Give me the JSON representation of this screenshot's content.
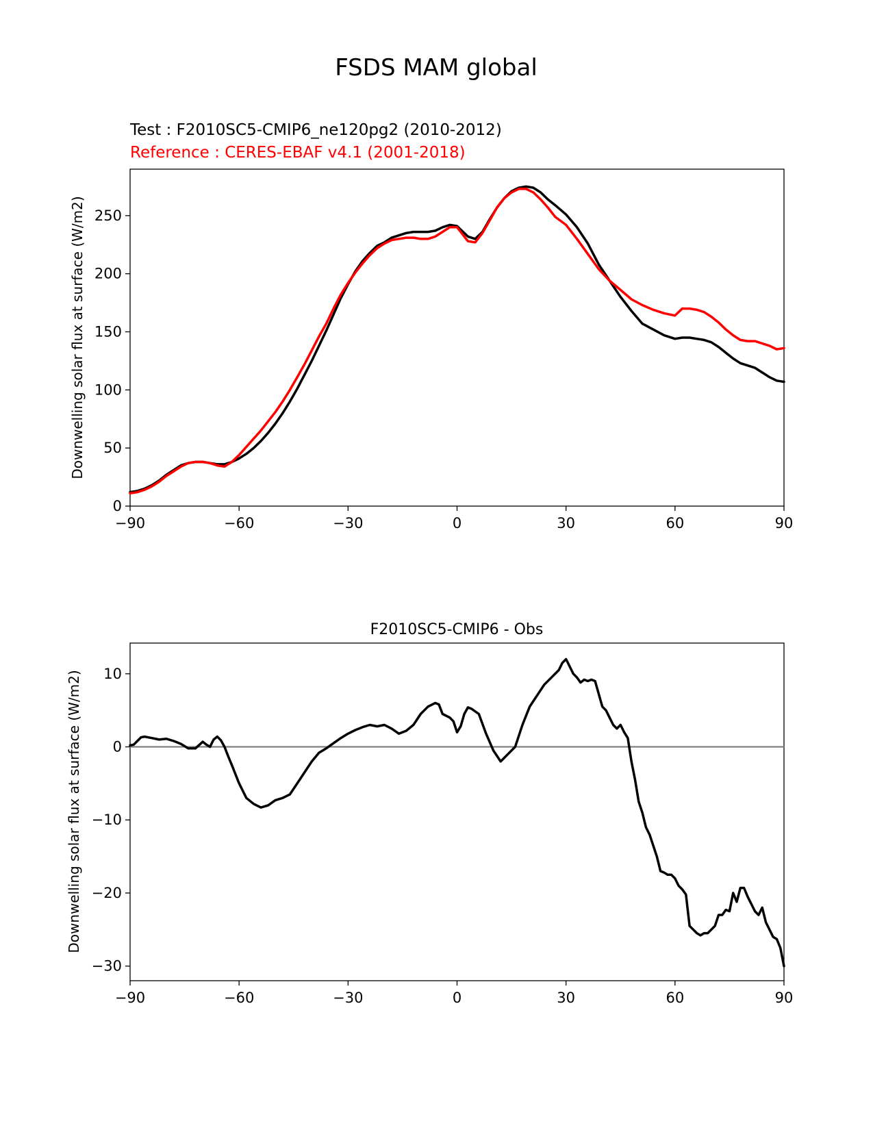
{
  "figure": {
    "suptitle": "FSDS MAM global"
  },
  "chart_data": [
    {
      "type": "line",
      "title_test": "Test : F2010SC5-CMIP6_ne120pg2 (2010-2012)",
      "title_ref": "Reference : CERES-EBAF v4.1 (2001-2018)",
      "xlabel": "",
      "ylabel": "Downwelling solar flux at surface (W/m2)",
      "xlim": [
        -90,
        90
      ],
      "ylim": [
        0,
        290
      ],
      "xticks": [
        -90,
        -60,
        -30,
        0,
        30,
        60,
        90
      ],
      "xtick_labels": [
        "−90",
        "−60",
        "−30",
        "0",
        "30",
        "60",
        "90"
      ],
      "yticks": [
        0,
        50,
        100,
        150,
        200,
        250
      ],
      "ytick_labels": [
        "0",
        "50",
        "100",
        "150",
        "200",
        "250"
      ],
      "grid": false,
      "legend": "none",
      "series": [
        {
          "color": "#000000",
          "x": [
            -90,
            -88,
            -86,
            -84,
            -82,
            -80,
            -78,
            -76,
            -74,
            -72,
            -70,
            -68,
            -66,
            -64,
            -62,
            -60,
            -58,
            -56,
            -54,
            -52,
            -50,
            -48,
            -46,
            -44,
            -42,
            -40,
            -38,
            -36,
            -34,
            -32,
            -30,
            -28,
            -26,
            -24,
            -22,
            -20,
            -18,
            -16,
            -14,
            -12,
            -10,
            -8,
            -6,
            -4,
            -2,
            0,
            1,
            3,
            5,
            7,
            9,
            11,
            13,
            15,
            17,
            19,
            21,
            23,
            25,
            27,
            30,
            33,
            36,
            39,
            42,
            45,
            48,
            51,
            54,
            57,
            60,
            62,
            64,
            66,
            68,
            70,
            72,
            74,
            76,
            78,
            80,
            82,
            84,
            86,
            88,
            90
          ],
          "y": [
            12,
            13,
            15,
            18,
            22,
            27,
            31,
            35,
            37,
            38,
            38,
            37,
            36,
            36,
            38,
            41,
            45,
            50,
            56,
            63,
            71,
            80,
            90,
            101,
            113,
            125,
            138,
            151,
            165,
            179,
            191,
            202,
            211,
            218,
            224,
            227,
            231,
            233,
            235,
            236,
            236,
            236,
            237,
            240,
            242,
            241,
            238,
            232,
            230,
            236,
            247,
            257,
            265,
            271,
            274,
            275,
            274,
            270,
            264,
            259,
            251,
            240,
            226,
            208,
            194,
            180,
            168,
            157,
            152,
            147,
            144,
            145,
            145,
            144,
            143,
            141,
            137,
            132,
            127,
            123,
            121,
            119,
            115,
            111,
            108,
            107
          ]
        },
        {
          "color": "#ff0000",
          "x": [
            -90,
            -88,
            -86,
            -84,
            -82,
            -80,
            -78,
            -76,
            -74,
            -72,
            -70,
            -68,
            -66,
            -64,
            -62,
            -60,
            -58,
            -56,
            -54,
            -52,
            -50,
            -48,
            -46,
            -44,
            -42,
            -40,
            -38,
            -36,
            -34,
            -32,
            -30,
            -28,
            -26,
            -24,
            -22,
            -20,
            -18,
            -16,
            -14,
            -12,
            -10,
            -8,
            -6,
            -4,
            -2,
            0,
            1,
            3,
            5,
            7,
            9,
            11,
            13,
            15,
            17,
            19,
            21,
            23,
            25,
            27,
            30,
            33,
            36,
            39,
            42,
            45,
            48,
            51,
            54,
            57,
            60,
            62,
            64,
            66,
            68,
            70,
            72,
            74,
            76,
            78,
            80,
            82,
            84,
            86,
            88,
            90
          ],
          "y": [
            11,
            12,
            14,
            17,
            21,
            26,
            30,
            34,
            37,
            38,
            38,
            37,
            35,
            34,
            38,
            44,
            51,
            58,
            65,
            73,
            81,
            90,
            100,
            111,
            122,
            134,
            146,
            157,
            170,
            182,
            192,
            201,
            209,
            216,
            222,
            226,
            229,
            230,
            231,
            231,
            230,
            230,
            232,
            236,
            240,
            240,
            236,
            228,
            227,
            235,
            246,
            257,
            265,
            270,
            273,
            273,
            270,
            264,
            257,
            249,
            242,
            230,
            217,
            204,
            194,
            186,
            178,
            173,
            169,
            166,
            164,
            170,
            170,
            169,
            167,
            163,
            158,
            152,
            147,
            143,
            142,
            142,
            140,
            138,
            135,
            136
          ]
        }
      ]
    },
    {
      "type": "line",
      "title": "F2010SC5-CMIP6 - Obs",
      "xlabel": "",
      "ylabel": "Downwelling solar flux at surface (W/m2)",
      "xlim": [
        -90,
        90
      ],
      "ylim": [
        -32,
        14.2
      ],
      "xticks": [
        -90,
        -60,
        -30,
        0,
        30,
        60,
        90
      ],
      "xtick_labels": [
        "−90",
        "−60",
        "−30",
        "0",
        "30",
        "60",
        "90"
      ],
      "yticks": [
        -30,
        -20,
        -10,
        0,
        10
      ],
      "ytick_labels": [
        "−30",
        "−20",
        "−10",
        "0",
        "10"
      ],
      "grid": false,
      "legend": "none",
      "zero_line_color": "#808080",
      "series": [
        {
          "color": "#000000",
          "x": [
            -90,
            -89,
            -88,
            -87,
            -86,
            -84,
            -82,
            -80,
            -78,
            -76,
            -74,
            -72,
            -70,
            -69,
            -68,
            -67,
            -66,
            -65,
            -64,
            -63,
            -62,
            -60,
            -58,
            -56,
            -54,
            -52,
            -50,
            -48,
            -46,
            -44,
            -42,
            -40,
            -38,
            -36,
            -34,
            -32,
            -30,
            -28,
            -26,
            -24,
            -22,
            -20,
            -18,
            -16,
            -14,
            -12,
            -10,
            -8,
            -6,
            -5,
            -4,
            -2,
            -1,
            0,
            1,
            2,
            3,
            4,
            6,
            8,
            10,
            12,
            14,
            16,
            18,
            20,
            22,
            24,
            26,
            28,
            29,
            30,
            32,
            33,
            34,
            35,
            36,
            37,
            38,
            40,
            41,
            42,
            43,
            44,
            45,
            46,
            47,
            48,
            49,
            50,
            51,
            52,
            53,
            54,
            55,
            56,
            57,
            58,
            59,
            60,
            61,
            62,
            63,
            64,
            65,
            66,
            67,
            68,
            69,
            70,
            71,
            72,
            73,
            74,
            75,
            76,
            77,
            78,
            79,
            80,
            81,
            82,
            83,
            84,
            85,
            86,
            87,
            88,
            89,
            90
          ],
          "y": [
            0.2,
            0.3,
            0.8,
            1.3,
            1.4,
            1.2,
            1.0,
            1.1,
            0.8,
            0.4,
            -0.2,
            -0.2,
            0.7,
            0.3,
            0.0,
            1.0,
            1.4,
            0.9,
            0.0,
            -1.3,
            -2.5,
            -5.0,
            -7.0,
            -7.8,
            -8.3,
            -8.0,
            -7.3,
            -7.0,
            -6.5,
            -5.0,
            -3.5,
            -2.0,
            -0.8,
            -0.2,
            0.5,
            1.2,
            1.8,
            2.3,
            2.7,
            3.0,
            2.8,
            3.0,
            2.5,
            1.8,
            2.2,
            3.0,
            4.5,
            5.5,
            6.0,
            5.8,
            4.5,
            4.0,
            3.5,
            2.0,
            2.8,
            4.5,
            5.4,
            5.2,
            4.5,
            1.8,
            -0.5,
            -2.0,
            -1.0,
            0.0,
            3.0,
            5.5,
            7.0,
            8.5,
            9.5,
            10.5,
            11.5,
            12.0,
            10.0,
            9.5,
            8.8,
            9.2,
            9.0,
            9.2,
            9.0,
            5.5,
            5.0,
            4.0,
            3.0,
            2.5,
            3.0,
            2.0,
            1.2,
            -2.0,
            -4.5,
            -7.5,
            -9.0,
            -11.0,
            -12.0,
            -13.5,
            -15.0,
            -17.0,
            -17.2,
            -17.5,
            -17.5,
            -18.0,
            -19.0,
            -19.5,
            -20.2,
            -24.5,
            -25.0,
            -25.5,
            -25.8,
            -25.5,
            -25.5,
            -25.0,
            -24.5,
            -23.0,
            -23.0,
            -22.3,
            -22.5,
            -20.0,
            -21.2,
            -19.3,
            -19.3,
            -20.5,
            -21.5,
            -22.5,
            -23.0,
            -22.0,
            -24.0,
            -25.0,
            -26.0,
            -26.3,
            -27.5,
            -30.0
          ]
        }
      ]
    }
  ]
}
